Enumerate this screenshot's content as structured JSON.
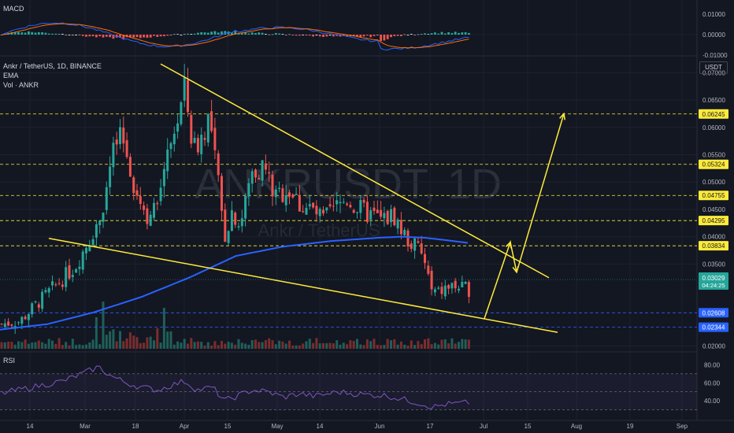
{
  "symbol_line": "Ankr / TetherUS, 1D, BINANCE",
  "indicator_ema": "EMA",
  "indicator_vol": "Vol · ANKR",
  "macd_label": "MACD",
  "rsi_label": "RSI",
  "currency_button": "USDT",
  "watermark": "ANKRUSDT, 1D",
  "watermark_sub": "Ankr / TetherUS",
  "colors": {
    "bg": "#131722",
    "up": "#26a69a",
    "down": "#ef5350",
    "ema": "#2962ff",
    "trend": "#ffeb3b",
    "rsi": "#7e57c2",
    "macd_line": "#2962ff",
    "signal_line": "#ff6d00"
  },
  "chart_data": [
    {
      "type": "candlestick",
      "title": "Ankr / TetherUS, 1D, BINANCE",
      "ylim": [
        0.0195,
        0.0725
      ],
      "price_ticks": [
        "0.07000",
        "0.06500",
        "0.06000",
        "0.05500",
        "0.05000",
        "0.04500",
        "0.04000",
        "0.03500",
        "0.02000"
      ],
      "date_ticks": [
        "14",
        "Mar",
        "18",
        "Apr",
        "15",
        "May",
        "14",
        "Jun",
        "17",
        "Jul",
        "15",
        "Aug",
        "19",
        "Sep"
      ],
      "levels": [
        {
          "value": 0.06245,
          "label": "0.06245",
          "style": "dashed"
        },
        {
          "value": 0.05324,
          "label": "0.05324",
          "style": "dashed"
        },
        {
          "value": 0.04755,
          "label": "0.04755",
          "style": "dashed"
        },
        {
          "value": 0.04295,
          "label": "0.04295",
          "style": "dashed"
        },
        {
          "value": 0.03834,
          "label": "0.03834",
          "style": "dashed"
        },
        {
          "value": 0.02608,
          "label": "0.02608",
          "style": "dashed-blue"
        },
        {
          "value": 0.02344,
          "label": "0.02344",
          "style": "dashed-blue"
        }
      ],
      "last_price": {
        "value": 0.03029,
        "label": "0.03029",
        "countdown": "04:24:25"
      },
      "price_anchors": [
        [
          0,
          0.024
        ],
        [
          25,
          0.0245
        ],
        [
          45,
          0.0275
        ],
        [
          70,
          0.031
        ],
        [
          95,
          0.0345
        ],
        [
          115,
          0.04
        ],
        [
          130,
          0.045
        ],
        [
          145,
          0.056
        ],
        [
          155,
          0.058
        ],
        [
          170,
          0.05
        ],
        [
          185,
          0.044
        ],
        [
          200,
          0.045
        ],
        [
          210,
          0.056
        ],
        [
          225,
          0.061
        ],
        [
          235,
          0.067
        ],
        [
          245,
          0.056
        ],
        [
          255,
          0.058
        ],
        [
          265,
          0.062
        ],
        [
          275,
          0.052
        ],
        [
          285,
          0.04
        ],
        [
          295,
          0.045
        ],
        [
          305,
          0.042
        ],
        [
          320,
          0.052
        ],
        [
          335,
          0.053
        ],
        [
          350,
          0.047
        ],
        [
          365,
          0.049
        ],
        [
          380,
          0.046
        ],
        [
          395,
          0.045
        ],
        [
          410,
          0.043
        ],
        [
          425,
          0.045
        ],
        [
          440,
          0.047
        ],
        [
          455,
          0.045
        ],
        [
          470,
          0.044
        ],
        [
          485,
          0.043
        ],
        [
          500,
          0.044
        ],
        [
          510,
          0.041
        ],
        [
          520,
          0.039
        ],
        [
          530,
          0.038
        ],
        [
          540,
          0.035
        ],
        [
          548,
          0.03
        ],
        [
          555,
          0.0295
        ],
        [
          565,
          0.0305
        ],
        [
          575,
          0.031
        ],
        [
          585,
          0.0305
        ],
        [
          598,
          0.0303
        ]
      ],
      "ema_anchors": [
        [
          0,
          0.023
        ],
        [
          60,
          0.024
        ],
        [
          120,
          0.0262
        ],
        [
          180,
          0.029
        ],
        [
          240,
          0.0325
        ],
        [
          270,
          0.0345
        ],
        [
          300,
          0.0365
        ],
        [
          360,
          0.0382
        ],
        [
          420,
          0.0392
        ],
        [
          480,
          0.0398
        ],
        [
          510,
          0.04
        ],
        [
          540,
          0.0398
        ],
        [
          570,
          0.0393
        ],
        [
          598,
          0.0388
        ]
      ],
      "trendlines": [
        {
          "from": [
            0.0716,
            0
          ],
          "to": [
            0.0325,
            1
          ]
        },
        {
          "from": [
            0.0397,
            0
          ],
          "to": [
            0.0225,
            1
          ]
        }
      ],
      "projection": [
        0.025,
        0.039,
        0.0335,
        0.0625
      ]
    },
    {
      "type": "line",
      "title": "MACD",
      "y_ticks": [
        "0.01000",
        "0.00000",
        "-0.01000"
      ],
      "ylim": [
        -0.012,
        0.012
      ]
    },
    {
      "type": "line",
      "title": "RSI",
      "y_ticks": [
        "80.00",
        "60.00",
        "40.00"
      ],
      "ylim": [
        20,
        90
      ],
      "bands": [
        70,
        50,
        30
      ],
      "anchors": [
        [
          0,
          48
        ],
        [
          40,
          55
        ],
        [
          80,
          62
        ],
        [
          110,
          72
        ],
        [
          125,
          78
        ],
        [
          140,
          68
        ],
        [
          160,
          60
        ],
        [
          180,
          55
        ],
        [
          200,
          52
        ],
        [
          220,
          58
        ],
        [
          235,
          62
        ],
        [
          250,
          52
        ],
        [
          270,
          55
        ],
        [
          285,
          40
        ],
        [
          300,
          45
        ],
        [
          320,
          52
        ],
        [
          340,
          50
        ],
        [
          360,
          44
        ],
        [
          380,
          48
        ],
        [
          400,
          45
        ],
        [
          430,
          50
        ],
        [
          460,
          47
        ],
        [
          490,
          46
        ],
        [
          510,
          42
        ],
        [
          530,
          38
        ],
        [
          550,
          33
        ],
        [
          565,
          36
        ],
        [
          580,
          37
        ],
        [
          598,
          38
        ]
      ]
    }
  ]
}
